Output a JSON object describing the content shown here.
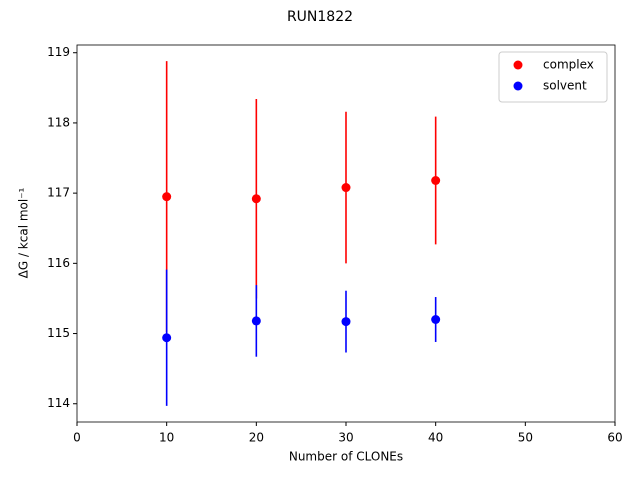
{
  "chart_data": {
    "type": "scatter",
    "title": "RUN1822",
    "x_label": "Number of CLONEs",
    "y_label": "ΔG / kcal mol⁻¹",
    "x": [
      10,
      20,
      30,
      40
    ],
    "series": [
      {
        "name": "complex",
        "color": "#ff0000",
        "values": [
          116.95,
          116.92,
          117.08,
          117.18
        ],
        "errors": [
          1.93,
          1.42,
          1.08,
          0.91
        ]
      },
      {
        "name": "solvent",
        "color": "#0000ff",
        "values": [
          114.94,
          115.18,
          115.17,
          115.2
        ],
        "errors": [
          0.97,
          0.51,
          0.44,
          0.32
        ]
      }
    ],
    "xlim": [
      0,
      60
    ],
    "xticks": [
      0,
      10,
      20,
      30,
      40,
      50,
      60
    ],
    "ylim": [
      113.74,
      119.11
    ],
    "yticks": [
      114,
      115,
      116,
      117,
      118,
      119
    ],
    "legend": "upper right",
    "grid": false
  }
}
